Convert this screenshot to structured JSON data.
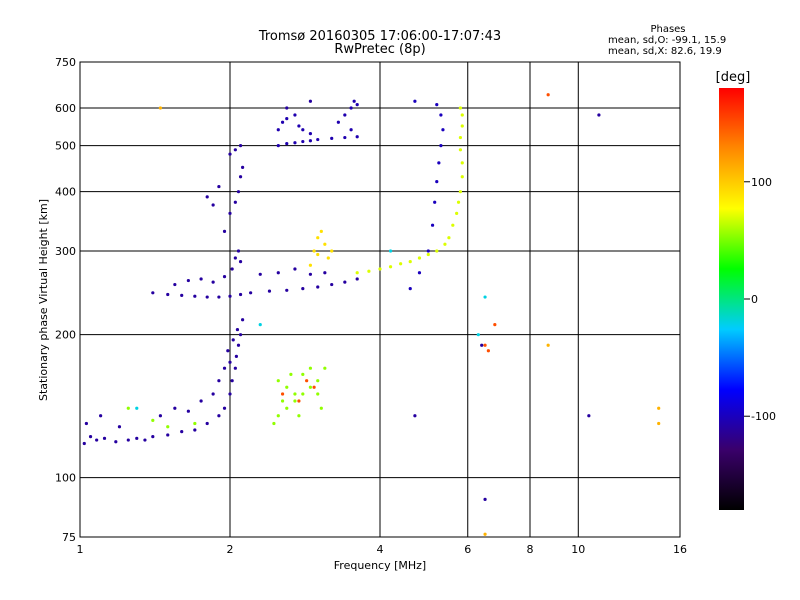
{
  "chart_data": {
    "type": "scatter",
    "title": "Tromsø 20160305 17:06:00-17:07:43",
    "subtitle": "RwPretec (8p)",
    "xlabel": "Frequency [MHz]",
    "ylabel": "Stationary phase Virtual Height [km]",
    "x_scale": "log2",
    "y_scale": "log",
    "xlim": [
      1,
      16
    ],
    "ylim": [
      75,
      750
    ],
    "x_ticks": [
      "1",
      "2",
      "4",
      "6",
      "8",
      "10",
      "16"
    ],
    "x_tick_values": [
      1,
      2,
      4,
      6,
      8,
      10,
      16
    ],
    "y_ticks": [
      "75",
      "100",
      "200",
      "300",
      "400",
      "500",
      "600",
      "750"
    ],
    "y_tick_values": [
      75,
      100,
      200,
      300,
      400,
      500,
      600,
      750
    ],
    "grid": true,
    "stats": {
      "header": "Phases",
      "line_o": "mean, sd,O: -99.1, 15.9",
      "line_x": "mean, sd,X:  82.6, 19.9"
    },
    "colorbar": {
      "label": "[deg]",
      "range": [
        -180,
        180
      ],
      "ticks": [
        "100",
        "0",
        "-100"
      ],
      "tick_values": [
        100,
        0,
        -100
      ],
      "colors": [
        "#000000",
        "#3a006b",
        "#0000ff",
        "#00ccff",
        "#00ff00",
        "#ffff00",
        "#ff8800",
        "#ff0000"
      ]
    },
    "series": [
      {
        "phase": -110,
        "points": [
          [
            1.02,
            118
          ],
          [
            1.05,
            122
          ],
          [
            1.08,
            120
          ],
          [
            1.12,
            121
          ],
          [
            1.18,
            119
          ],
          [
            1.25,
            120
          ],
          [
            1.3,
            121
          ],
          [
            1.35,
            120
          ],
          [
            1.4,
            122
          ],
          [
            1.5,
            123
          ],
          [
            1.6,
            125
          ],
          [
            1.7,
            126
          ],
          [
            1.8,
            130
          ],
          [
            1.9,
            135
          ],
          [
            1.95,
            140
          ],
          [
            2.0,
            150
          ],
          [
            2.02,
            160
          ],
          [
            2.05,
            170
          ],
          [
            2.06,
            180
          ],
          [
            2.08,
            190
          ],
          [
            2.1,
            200
          ],
          [
            2.12,
            215
          ],
          [
            1.03,
            130
          ],
          [
            1.1,
            135
          ],
          [
            1.2,
            128
          ],
          [
            1.45,
            135
          ],
          [
            1.55,
            140
          ],
          [
            1.65,
            138
          ],
          [
            1.75,
            145
          ],
          [
            1.85,
            150
          ],
          [
            1.9,
            160
          ],
          [
            1.95,
            170
          ],
          [
            2.0,
            175
          ],
          [
            1.98,
            185
          ],
          [
            2.03,
            195
          ],
          [
            2.07,
            205
          ]
        ]
      },
      {
        "phase": -110,
        "points": [
          [
            1.4,
            245
          ],
          [
            1.5,
            243
          ],
          [
            1.6,
            242
          ],
          [
            1.7,
            241
          ],
          [
            1.8,
            240
          ],
          [
            1.9,
            240
          ],
          [
            2.0,
            241
          ],
          [
            2.1,
            243
          ],
          [
            2.2,
            245
          ],
          [
            2.4,
            247
          ],
          [
            2.6,
            248
          ],
          [
            2.8,
            250
          ],
          [
            3.0,
            252
          ],
          [
            3.2,
            255
          ],
          [
            3.4,
            258
          ],
          [
            3.6,
            262
          ],
          [
            1.55,
            255
          ],
          [
            1.65,
            260
          ],
          [
            1.75,
            262
          ],
          [
            1.85,
            258
          ],
          [
            1.95,
            265
          ],
          [
            2.02,
            275
          ],
          [
            2.05,
            290
          ],
          [
            2.08,
            300
          ],
          [
            2.1,
            285
          ],
          [
            2.3,
            268
          ],
          [
            2.5,
            270
          ],
          [
            2.7,
            275
          ],
          [
            2.9,
            268
          ],
          [
            3.1,
            270
          ]
        ]
      },
      {
        "phase": -110,
        "points": [
          [
            1.95,
            330
          ],
          [
            2.0,
            360
          ],
          [
            2.05,
            380
          ],
          [
            2.08,
            400
          ],
          [
            2.1,
            430
          ],
          [
            2.12,
            450
          ],
          [
            1.8,
            390
          ],
          [
            1.85,
            375
          ],
          [
            1.9,
            410
          ],
          [
            2.0,
            480
          ],
          [
            2.05,
            490
          ],
          [
            2.1,
            500
          ]
        ]
      },
      {
        "phase": -105,
        "points": [
          [
            2.5,
            500
          ],
          [
            2.6,
            505
          ],
          [
            2.7,
            507
          ],
          [
            2.8,
            510
          ],
          [
            2.9,
            512
          ],
          [
            3.0,
            515
          ],
          [
            3.2,
            518
          ],
          [
            3.4,
            520
          ],
          [
            3.6,
            522
          ],
          [
            2.5,
            540
          ],
          [
            2.55,
            560
          ],
          [
            2.6,
            570
          ],
          [
            2.7,
            580
          ],
          [
            2.75,
            550
          ],
          [
            2.8,
            540
          ],
          [
            2.9,
            530
          ],
          [
            3.3,
            560
          ],
          [
            3.4,
            580
          ],
          [
            3.5,
            600
          ],
          [
            3.55,
            620
          ],
          [
            3.6,
            610
          ],
          [
            3.5,
            540
          ]
        ]
      },
      {
        "phase": -100,
        "points": [
          [
            4.6,
            250
          ],
          [
            4.8,
            270
          ],
          [
            5.0,
            300
          ],
          [
            5.1,
            340
          ],
          [
            5.15,
            380
          ],
          [
            5.2,
            420
          ],
          [
            5.25,
            460
          ],
          [
            5.3,
            500
          ],
          [
            5.35,
            540
          ],
          [
            5.3,
            580
          ],
          [
            4.7,
            620
          ],
          [
            5.2,
            610
          ]
        ]
      },
      {
        "phase": 70,
        "points": [
          [
            3.6,
            270
          ],
          [
            3.8,
            272
          ],
          [
            4.0,
            275
          ],
          [
            4.2,
            278
          ],
          [
            4.4,
            282
          ],
          [
            4.6,
            285
          ],
          [
            4.8,
            290
          ],
          [
            5.0,
            295
          ],
          [
            5.2,
            300
          ],
          [
            5.4,
            310
          ],
          [
            5.5,
            320
          ],
          [
            5.6,
            340
          ],
          [
            5.7,
            360
          ],
          [
            5.75,
            380
          ],
          [
            5.8,
            400
          ],
          [
            5.85,
            430
          ],
          [
            5.85,
            460
          ],
          [
            5.8,
            490
          ],
          [
            5.8,
            520
          ],
          [
            5.85,
            550
          ],
          [
            5.85,
            580
          ],
          [
            5.8,
            600
          ]
        ]
      },
      {
        "phase": 90,
        "points": [
          [
            2.9,
            280
          ],
          [
            2.95,
            300
          ],
          [
            3.0,
            320
          ],
          [
            3.05,
            330
          ],
          [
            3.1,
            310
          ],
          [
            3.0,
            295
          ],
          [
            3.15,
            290
          ],
          [
            3.2,
            300
          ]
        ]
      },
      {
        "phase": 55,
        "points": [
          [
            2.45,
            130
          ],
          [
            2.5,
            135
          ],
          [
            2.6,
            140
          ],
          [
            2.7,
            145
          ],
          [
            2.8,
            150
          ],
          [
            2.9,
            155
          ],
          [
            3.0,
            160
          ],
          [
            3.1,
            170
          ],
          [
            2.5,
            160
          ],
          [
            2.6,
            155
          ],
          [
            2.7,
            150
          ],
          [
            2.8,
            165
          ],
          [
            2.9,
            170
          ],
          [
            2.55,
            145
          ],
          [
            2.65,
            165
          ],
          [
            3.0,
            150
          ],
          [
            3.05,
            140
          ],
          [
            2.75,
            135
          ],
          [
            1.25,
            140
          ],
          [
            1.4,
            132
          ],
          [
            1.7,
            130
          ],
          [
            1.5,
            128
          ]
        ]
      },
      {
        "phase": 150,
        "points": [
          [
            2.55,
            150
          ],
          [
            2.75,
            145
          ],
          [
            2.85,
            160
          ],
          [
            2.95,
            155
          ],
          [
            6.8,
            210
          ],
          [
            6.5,
            190
          ],
          [
            8.7,
            640
          ],
          [
            6.6,
            185
          ]
        ]
      },
      {
        "phase": -20,
        "points": [
          [
            6.5,
            240
          ],
          [
            6.3,
            200
          ],
          [
            1.3,
            140
          ],
          [
            2.3,
            210
          ],
          [
            4.2,
            300
          ]
        ]
      },
      {
        "phase": -110,
        "points": [
          [
            6.5,
            90
          ],
          [
            6.4,
            190
          ],
          [
            11,
            580
          ],
          [
            10.5,
            135
          ],
          [
            4.7,
            135
          ],
          [
            2.6,
            600
          ],
          [
            2.9,
            620
          ]
        ]
      },
      {
        "phase": 110,
        "points": [
          [
            14.5,
            140
          ],
          [
            14.5,
            130
          ],
          [
            6.5,
            76
          ],
          [
            8.7,
            190
          ],
          [
            1.45,
            600
          ]
        ]
      }
    ]
  }
}
